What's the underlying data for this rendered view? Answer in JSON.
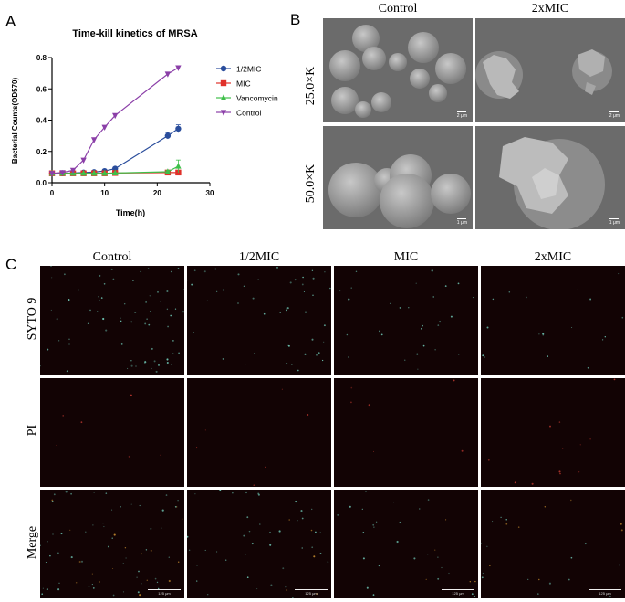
{
  "panels": {
    "a_letter": "A",
    "b_letter": "B",
    "c_letter": "C"
  },
  "chart_data": {
    "type": "line",
    "title": "Time-kill kinetics of MRSA",
    "xlabel": "Time(h)",
    "ylabel": "Bacterial Counts(OD570)",
    "xlim": [
      0,
      30
    ],
    "ylim": [
      0,
      0.8
    ],
    "xticks": [
      0,
      10,
      20,
      30
    ],
    "yticks": [
      0.0,
      0.2,
      0.4,
      0.6,
      0.8
    ],
    "ytick_labels": [
      "0.0",
      "0.2",
      "0.4",
      "0.6",
      "0.8"
    ],
    "legend_position": "right",
    "series": [
      {
        "name": "1/2MIC",
        "color": "#2a4d9c",
        "marker": "circle",
        "x": [
          0,
          2,
          4,
          6,
          8,
          10,
          12,
          22,
          24
        ],
        "y": [
          0.06,
          0.06,
          0.062,
          0.065,
          0.068,
          0.075,
          0.09,
          0.3,
          0.345
        ],
        "err": [
          0,
          0,
          0,
          0,
          0,
          0.005,
          0.01,
          0.02,
          0.025
        ]
      },
      {
        "name": "MIC",
        "color": "#e0312a",
        "marker": "square",
        "x": [
          0,
          2,
          4,
          6,
          8,
          10,
          12,
          22,
          24
        ],
        "y": [
          0.06,
          0.06,
          0.06,
          0.06,
          0.06,
          0.06,
          0.062,
          0.065,
          0.065
        ],
        "err": [
          0,
          0,
          0,
          0,
          0,
          0,
          0,
          0,
          0
        ]
      },
      {
        "name": "Vancomycin",
        "color": "#3fbf4a",
        "marker": "triangle-up",
        "x": [
          0,
          2,
          4,
          6,
          8,
          10,
          12,
          22,
          24
        ],
        "y": [
          0.06,
          0.06,
          0.06,
          0.06,
          0.06,
          0.06,
          0.062,
          0.07,
          0.105
        ],
        "err": [
          0,
          0,
          0,
          0,
          0,
          0,
          0,
          0.01,
          0.04
        ]
      },
      {
        "name": "Control",
        "color": "#8b3fa8",
        "marker": "triangle-down",
        "x": [
          0,
          2,
          4,
          6,
          8,
          10,
          12,
          22,
          24
        ],
        "y": [
          0.06,
          0.065,
          0.08,
          0.145,
          0.275,
          0.355,
          0.43,
          0.695,
          0.735
        ],
        "err": [
          0,
          0,
          0,
          0,
          0,
          0,
          0,
          0.01,
          0.012
        ]
      }
    ]
  },
  "sem": {
    "col_headers": [
      "Control",
      "2xMIC"
    ],
    "row_labels": [
      "25.0×K",
      "50.0×K"
    ],
    "scale_top": "2 μm",
    "scale_bottom": "1 μm"
  },
  "fluorescence": {
    "col_headers": [
      "Control",
      "1/2MIC",
      "MIC",
      "2xMIC"
    ],
    "row_labels": [
      "SYTO 9",
      "PI",
      "Merge"
    ],
    "scale": "125 μm"
  }
}
